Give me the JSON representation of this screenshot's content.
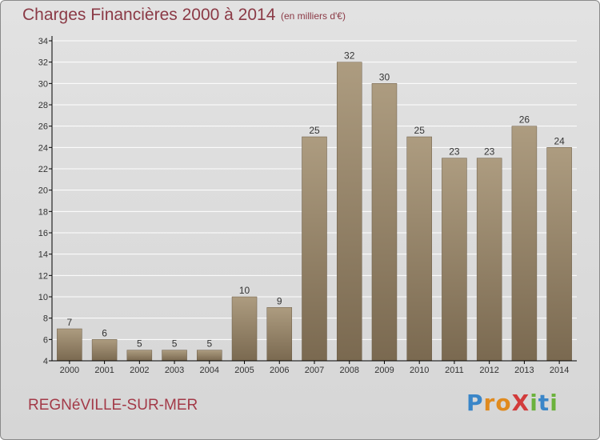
{
  "header": {
    "title": "Charges Financières 2000 à 2014",
    "unit": "(en milliers d'€)"
  },
  "footer": {
    "commune": "REGNéVILLE-SUR-MER"
  },
  "logo": {
    "letters": [
      {
        "ch": "P",
        "color": "#3a86c8"
      },
      {
        "ch": "r",
        "color": "#e08a1e"
      },
      {
        "ch": "o",
        "color": "#e08a1e"
      },
      {
        "ch": "X",
        "color": "#d23b3b"
      },
      {
        "ch": "i",
        "color": "#6bb23c"
      },
      {
        "ch": "t",
        "color": "#3a86c8"
      },
      {
        "ch": "i",
        "color": "#6bb23c"
      }
    ]
  },
  "colors": {
    "bar_top": "#ad9c80",
    "bar_bottom": "#7a6950",
    "grid": "#ffffff",
    "axis": "#000000"
  },
  "chart_data": {
    "type": "bar",
    "categories": [
      "2000",
      "2001",
      "2002",
      "2003",
      "2004",
      "2005",
      "2006",
      "2007",
      "2008",
      "2009",
      "2010",
      "2011",
      "2012",
      "2013",
      "2014"
    ],
    "values": [
      7,
      6,
      5,
      5,
      5,
      10,
      9,
      25,
      32,
      30,
      25,
      23,
      23,
      26,
      24
    ],
    "ylim": [
      4,
      34
    ],
    "yticks": [
      4,
      6,
      8,
      10,
      12,
      14,
      16,
      18,
      20,
      22,
      24,
      26,
      28,
      30,
      32,
      34
    ],
    "grid": true,
    "title": "Charges Financières 2000 à 2014"
  }
}
